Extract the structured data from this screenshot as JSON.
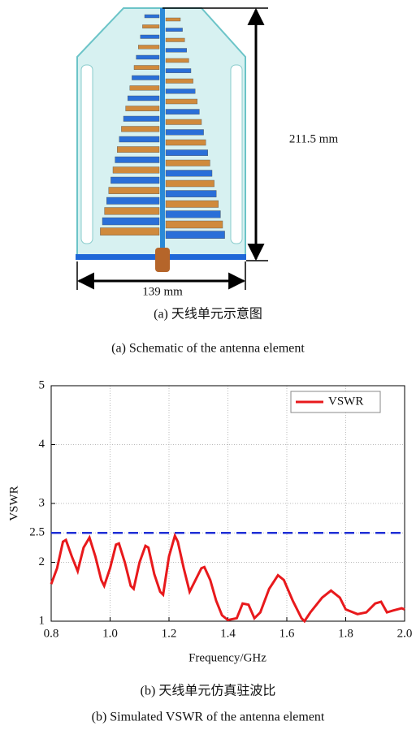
{
  "figure_a": {
    "height_label": "211.5 mm",
    "width_label": "139 mm",
    "caption_cn": "(a) 天线单元示意图",
    "caption_en": "(a) Schematic of the antenna element"
  },
  "chart_data": {
    "type": "line",
    "x": [
      0.8,
      0.82,
      0.84,
      0.85,
      0.87,
      0.89,
      0.91,
      0.93,
      0.95,
      0.97,
      0.98,
      1.0,
      1.02,
      1.03,
      1.05,
      1.07,
      1.08,
      1.1,
      1.12,
      1.13,
      1.15,
      1.17,
      1.18,
      1.2,
      1.22,
      1.23,
      1.25,
      1.27,
      1.29,
      1.31,
      1.32,
      1.34,
      1.36,
      1.38,
      1.4,
      1.43,
      1.45,
      1.47,
      1.49,
      1.51,
      1.54,
      1.57,
      1.59,
      1.62,
      1.65,
      1.66,
      1.68,
      1.72,
      1.75,
      1.78,
      1.8,
      1.84,
      1.87,
      1.9,
      1.92,
      1.94,
      1.96,
      1.99,
      2.0
    ],
    "series": [
      {
        "name": "VSWR",
        "color": "#e8191c",
        "values": [
          1.63,
          1.9,
          2.35,
          2.38,
          2.1,
          1.85,
          2.25,
          2.42,
          2.1,
          1.7,
          1.6,
          1.9,
          2.3,
          2.32,
          2.0,
          1.6,
          1.55,
          2.0,
          2.28,
          2.25,
          1.8,
          1.5,
          1.45,
          2.1,
          2.45,
          2.35,
          1.9,
          1.5,
          1.7,
          1.9,
          1.92,
          1.7,
          1.35,
          1.1,
          1.02,
          1.05,
          1.3,
          1.28,
          1.05,
          1.15,
          1.55,
          1.78,
          1.7,
          1.35,
          1.05,
          1.0,
          1.15,
          1.4,
          1.52,
          1.4,
          1.2,
          1.12,
          1.15,
          1.3,
          1.33,
          1.15,
          1.18,
          1.22,
          1.2
        ]
      }
    ],
    "reference_line": {
      "value": 2.5,
      "color": "#1f2fd6"
    },
    "xlabel": "Frequency/GHz",
    "ylabel": "VSWR",
    "xlim": [
      0.8,
      2.0
    ],
    "xticks": [
      0.8,
      {
        "value": 1,
        "label": "1.0"
      },
      1.2,
      1.4,
      1.6,
      1.8,
      {
        "value": 2,
        "label": "2.0"
      }
    ],
    "ylim": [
      1,
      5
    ],
    "yticks": [
      1,
      2,
      2.5,
      3,
      4,
      5
    ],
    "grid": true,
    "legend": "upper right"
  },
  "figure_b": {
    "caption_cn": "(b) 天线单元仿真驻波比",
    "caption_en": "(b) Simulated VSWR of the antenna element"
  }
}
